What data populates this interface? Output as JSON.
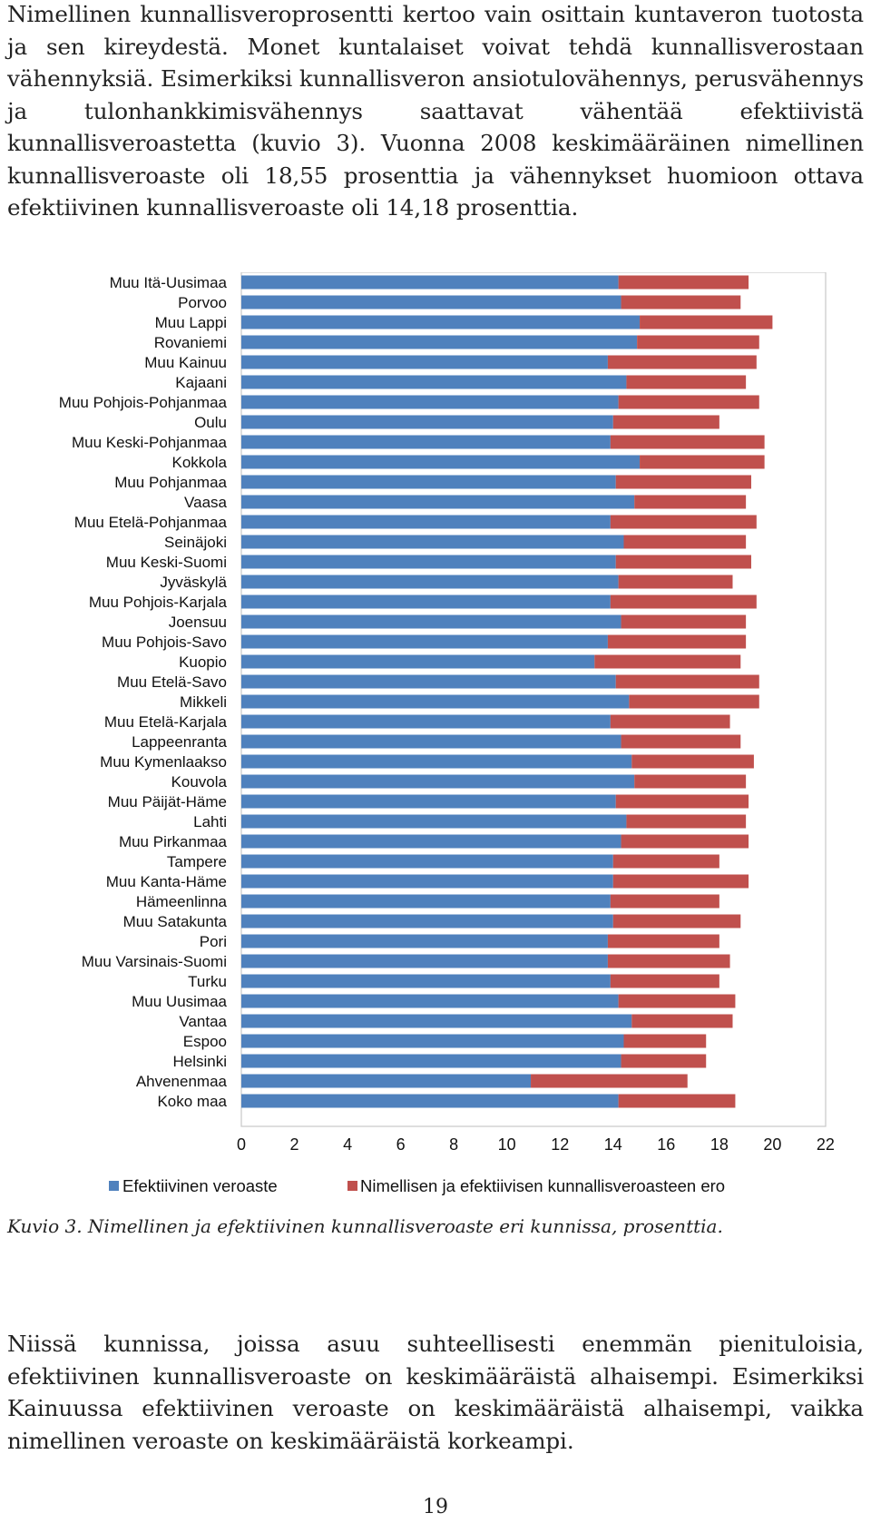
{
  "text": {
    "para1": "Nimellinen kunnallisveroprosentti kertoo vain osittain kuntaveron tuotosta ja sen kireydestä. Monet kuntalaiset voivat tehdä kunnallisverostaan vähennyksiä. Esimerkiksi kunnallisveron ansiotulovähennys, perusvähennys ja tulonhankkimisvähennys saattavat vähentää efektiivistä kunnallisveroastetta (kuvio 3). Vuonna 2008 keskimääräinen nimellinen kunnallisveroaste oli 18,55 prosenttia ja vähennykset huomioon ottava efektiivinen kunnallisveroaste oli 14,18 prosenttia.",
    "caption": "Kuvio 3. Nimellinen ja efektiivinen kunnallisveroaste eri kunnissa, prosenttia.",
    "para2": "Niissä kunnissa, joissa asuu suhteellisesti enemmän pienituloisia, efektiivinen kunnallisveroaste on keskimääräistä alhaisempi. Esimerkiksi Kainuussa efektiivinen veroaste on keskimääräistä alhaisempi, vaikka nimellinen veroaste on keskimääräistä korkeampi.",
    "page_number": "19"
  },
  "chart_data": {
    "type": "bar",
    "orientation": "horizontal",
    "stacked": true,
    "categories": [
      "Muu Itä-Uusimaa",
      "Porvoo",
      "Muu Lappi",
      "Rovaniemi",
      "Muu Kainuu",
      "Kajaani",
      "Muu Pohjois-Pohjanmaa",
      "Oulu",
      "Muu Keski-Pohjanmaa",
      "Kokkola",
      "Muu Pohjanmaa",
      "Vaasa",
      "Muu Etelä-Pohjanmaa",
      "Seinäjoki",
      "Muu Keski-Suomi",
      "Jyväskylä",
      "Muu Pohjois-Karjala",
      "Joensuu",
      "Muu Pohjois-Savo",
      "Kuopio",
      "Muu Etelä-Savo",
      "Mikkeli",
      "Muu Etelä-Karjala",
      "Lappeenranta",
      "Muu Kymenlaakso",
      "Kouvola",
      "Muu Päijät-Häme",
      "Lahti",
      "Muu Pirkanmaa",
      "Tampere",
      "Muu Kanta-Häme",
      "Hämeenlinna",
      "Muu Satakunta",
      "Pori",
      "Muu Varsinais-Suomi",
      "Turku",
      "Muu Uusimaa",
      "Vantaa",
      "Espoo",
      "Helsinki",
      "Ahvenenmaa",
      "Koko maa"
    ],
    "series": [
      {
        "name": "Efektiivinen veroaste",
        "color": "#4f81bd",
        "values": [
          14.2,
          14.3,
          15.0,
          14.9,
          13.8,
          14.5,
          14.2,
          14.0,
          13.9,
          15.0,
          14.1,
          14.8,
          13.9,
          14.4,
          14.1,
          14.2,
          13.9,
          14.3,
          13.8,
          13.3,
          14.1,
          14.6,
          13.9,
          14.3,
          14.7,
          14.8,
          14.1,
          14.5,
          14.3,
          14.0,
          14.0,
          13.9,
          14.0,
          13.8,
          13.8,
          13.9,
          14.2,
          14.7,
          14.4,
          14.3,
          10.9,
          14.2
        ]
      },
      {
        "name": "Nimellisen ja efektiivisen kunnallisveroasteen ero",
        "color": "#c0504d",
        "values": [
          4.9,
          4.5,
          5.0,
          4.6,
          5.6,
          4.5,
          5.3,
          4.0,
          5.8,
          4.7,
          5.1,
          4.2,
          5.5,
          4.6,
          5.1,
          4.3,
          5.5,
          4.7,
          5.2,
          5.5,
          5.4,
          4.9,
          4.5,
          4.5,
          4.6,
          4.2,
          5.0,
          4.5,
          4.8,
          4.0,
          5.1,
          4.1,
          4.8,
          4.2,
          4.6,
          4.1,
          4.4,
          3.8,
          3.1,
          3.2,
          5.9,
          4.4
        ]
      }
    ],
    "xlim": [
      0,
      22
    ],
    "xticks": [
      "0",
      "2",
      "4",
      "6",
      "8",
      "10",
      "12",
      "14",
      "16",
      "18",
      "20",
      "22"
    ],
    "grid": false,
    "legend_position": "bottom"
  }
}
